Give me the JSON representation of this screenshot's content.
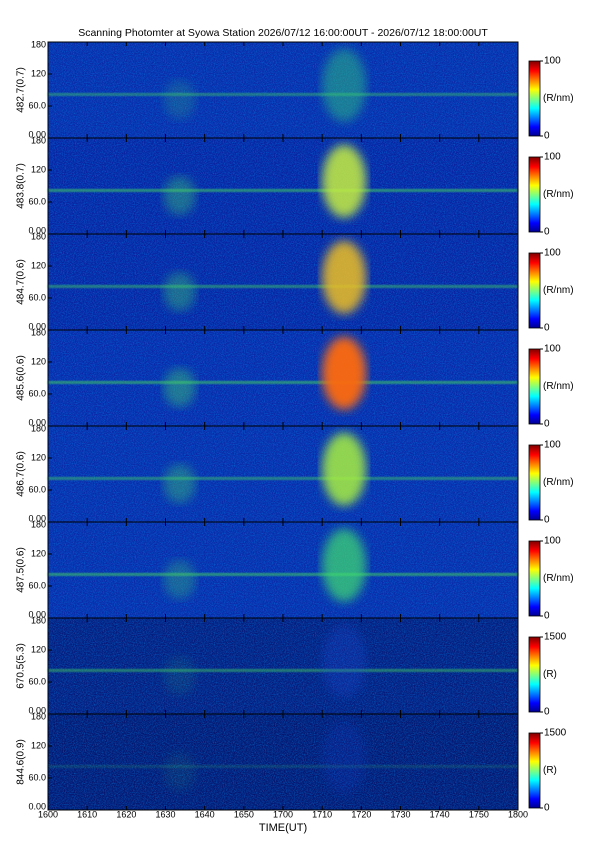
{
  "chart_data": {
    "type": "heatmap",
    "title": "Scanning Photomter at Syowa Station 2026/07/12 16:00:00UT - 2026/07/12 18:00:00UT",
    "x_label": "TIME(UT)",
    "xticks": [
      "1600",
      "1610",
      "1620",
      "1630",
      "1640",
      "1650",
      "1700",
      "1710",
      "1720",
      "1730",
      "1740",
      "1750",
      "1800"
    ],
    "panels": [
      {
        "label": "482.7(0.7)",
        "ylim": [
          0,
          180
        ],
        "yticks": [
          {
            "value": 0,
            "label": "0.00"
          },
          {
            "value": 60,
            "label": "60.0"
          },
          120,
          180
        ],
        "colorbar": {
          "label": "(R/nm)",
          "lim": [
            0,
            100
          ],
          "ticks": [
            0,
            100
          ]
        }
      },
      {
        "label": "483.8(0.7)",
        "ylim": [
          0,
          180
        ],
        "yticks": [
          {
            "value": 0,
            "label": "0.00"
          },
          {
            "value": 60,
            "label": "60.0"
          },
          120,
          180
        ],
        "colorbar": {
          "label": "(R/nm)",
          "lim": [
            0,
            100
          ],
          "ticks": [
            0,
            100
          ]
        }
      },
      {
        "label": "484.7(0.6)",
        "ylim": [
          0,
          180
        ],
        "yticks": [
          {
            "value": 0,
            "label": "0.00"
          },
          {
            "value": 60,
            "label": "60.0"
          },
          120,
          180
        ],
        "colorbar": {
          "label": "(R/nm)",
          "lim": [
            0,
            100
          ],
          "ticks": [
            0,
            100
          ]
        }
      },
      {
        "label": "485.6(0.6)",
        "ylim": [
          0,
          180
        ],
        "yticks": [
          {
            "value": 0,
            "label": "0.00"
          },
          {
            "value": 60,
            "label": "60.0"
          },
          120,
          180
        ],
        "colorbar": {
          "label": "(R/nm)",
          "lim": [
            0,
            100
          ],
          "ticks": [
            0,
            100
          ]
        }
      },
      {
        "label": "486.7(0.6)",
        "ylim": [
          0,
          180
        ],
        "yticks": [
          {
            "value": 0,
            "label": "0.00"
          },
          {
            "value": 60,
            "label": "60.0"
          },
          120,
          180
        ],
        "colorbar": {
          "label": "(R/nm)",
          "lim": [
            0,
            100
          ],
          "ticks": [
            0,
            100
          ]
        }
      },
      {
        "label": "487.5(0.6)",
        "ylim": [
          0,
          180
        ],
        "yticks": [
          {
            "value": 0,
            "label": "0.00"
          },
          {
            "value": 60,
            "label": "60.0"
          },
          120,
          180
        ],
        "colorbar": {
          "label": "(R/nm)",
          "lim": [
            0,
            100
          ],
          "ticks": [
            0,
            100
          ]
        }
      },
      {
        "label": "670.5(5.3)",
        "ylim": [
          0,
          180
        ],
        "yticks": [
          {
            "value": 0,
            "label": "0.00"
          },
          {
            "value": 60,
            "label": "60.0"
          },
          120,
          180
        ],
        "colorbar": {
          "label": "(R)",
          "lim": [
            0,
            1500
          ],
          "ticks": [
            0,
            1500
          ]
        }
      },
      {
        "label": "844.6(0.9)",
        "ylim": [
          0,
          180
        ],
        "yticks": [
          {
            "value": 0,
            "label": "0.00"
          },
          {
            "value": 60,
            "label": "60.0"
          },
          120,
          180
        ],
        "colorbar": {
          "label": "(R)",
          "lim": [
            0,
            1500
          ],
          "ticks": [
            0,
            1500
          ]
        }
      }
    ]
  }
}
